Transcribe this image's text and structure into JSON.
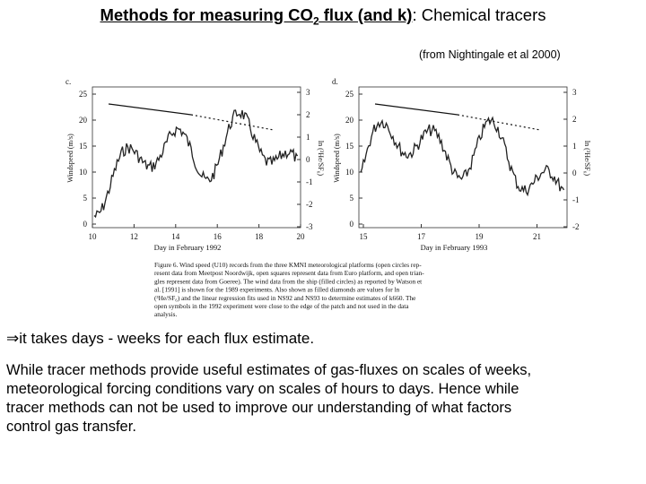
{
  "header": {
    "title_parts": [
      "Methods for measuring CO",
      "2",
      " flux (and k)",
      ": Chemical tracers"
    ],
    "source": "(from Nightingale et al 2000)"
  },
  "figure": {
    "panels": [
      {
        "label": "c.",
        "x_ticks": [
          "10",
          "12",
          "14",
          "16",
          "18",
          "20"
        ],
        "y_ticks": [
          "0",
          "5",
          "10",
          "15",
          "20",
          "25"
        ],
        "y2_ticks": [
          "3",
          "2",
          "1",
          "0",
          "-1",
          "-2",
          "-3"
        ],
        "x_label": "Day in February 1992",
        "y_label": "Windspeed (m/s)",
        "y2_label": "ln (³He/SF₆)"
      },
      {
        "label": "d.",
        "x_ticks": [
          "15",
          "17",
          "19",
          "21"
        ],
        "y_ticks": [
          "0",
          "5",
          "10",
          "15",
          "20",
          "25"
        ],
        "y2_ticks": [
          "3",
          "2",
          "1",
          "0",
          "-1",
          "-2"
        ],
        "x_label": "Day in February 1993",
        "y_label": "Windspeed (m/s)",
        "y2_label": "ln (³He/SF₆)"
      }
    ],
    "caption_lines": [
      "Figure 6.  Wind speed (U10) records from the three KMNI meteorological platforms (open circles rep-",
      "resent data from Meetpost Noordwijk, open squares represent data from Euro platform, and open trian-",
      "gles represent data from Goeree). The wind data from the ship (filled circles) as reported by Watson et",
      "al. [1991] is shown for the 1989 experiments.  Also shown as filled diamonds are values for ln",
      "(³He/SF₆) and the linear regression fits used in NS92 and NS93 to determine estimates of k660. The",
      "open symbols in the 1992 experiment were close to the edge of the patch and not used in the data",
      "analysis."
    ]
  },
  "bullet": "⇒it takes days - weeks for each flux estimate.",
  "paragraph_lines": [
    "While tracer methods provide useful estimates of gas-fluxes on scales of weeks,",
    "meteorological forcing conditions vary on scales of hours to days. Hence while",
    "tracer methods can not be used to improve our understanding of what factors",
    "control gas transfer."
  ]
}
